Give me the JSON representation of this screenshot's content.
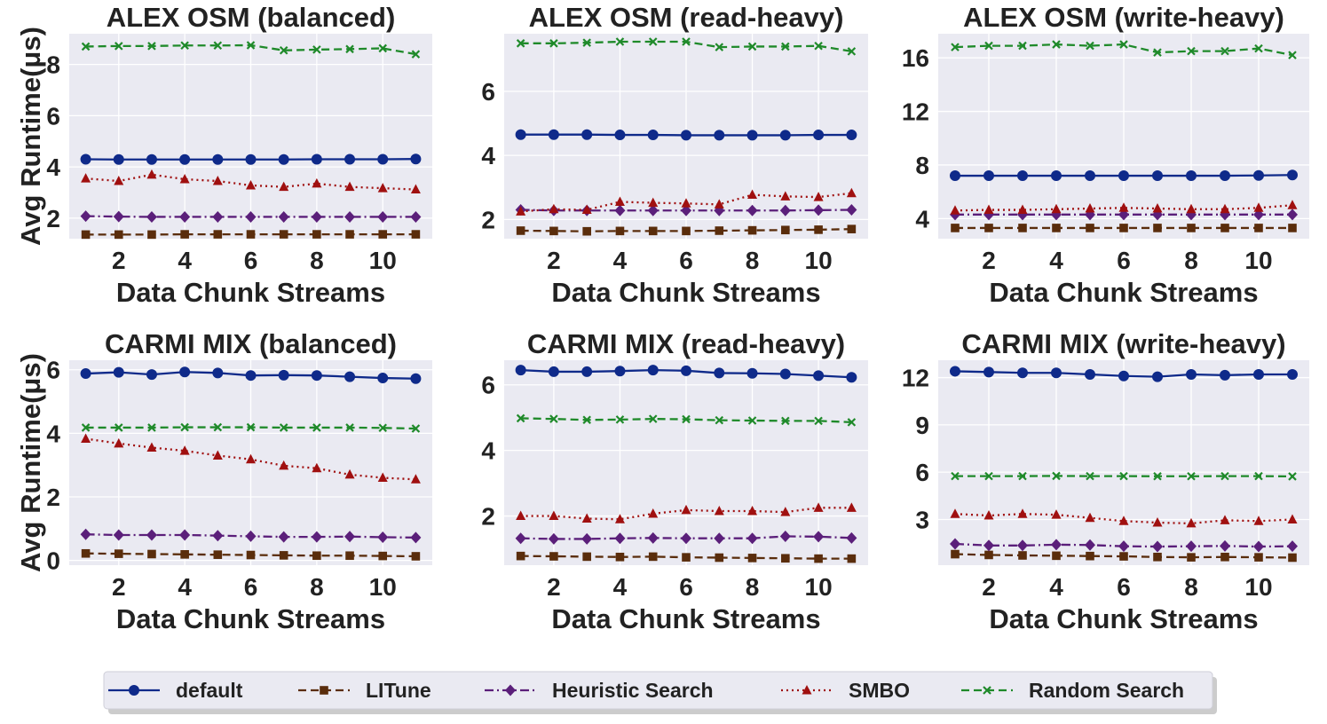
{
  "legend": [
    {
      "key": "default",
      "label": "default",
      "color": "#0f2a8a",
      "marker": "circle",
      "dash": "solid"
    },
    {
      "key": "litune",
      "label": "LITune",
      "color": "#5a2d0c",
      "marker": "square",
      "dash": "dash"
    },
    {
      "key": "heuristic",
      "label": "Heuristic Search",
      "color": "#5b1f7a",
      "marker": "diamond",
      "dash": "dashdot"
    },
    {
      "key": "smbo",
      "label": "SMBO",
      "color": "#a01010",
      "marker": "triangle",
      "dash": "dot"
    },
    {
      "key": "random",
      "label": "Random Search",
      "color": "#1f8a2a",
      "marker": "x",
      "dash": "dash"
    }
  ],
  "chart_data": [
    {
      "type": "line",
      "title": "ALEX OSM  (balanced)",
      "xlabel": "Data Chunk Streams",
      "ylabel": "Avg Runtime(μs)",
      "x": [
        1,
        2,
        3,
        4,
        5,
        6,
        7,
        8,
        9,
        10,
        11
      ],
      "xticks": [
        2,
        4,
        6,
        8,
        10
      ],
      "xlim": [
        0.5,
        11.5
      ],
      "ylim": [
        1.2,
        9.2
      ],
      "yticks": [
        2,
        4,
        6,
        8
      ],
      "series": [
        {
          "name": "default",
          "values": [
            4.3,
            4.29,
            4.29,
            4.29,
            4.29,
            4.29,
            4.29,
            4.3,
            4.3,
            4.3,
            4.31
          ]
        },
        {
          "name": "LITune",
          "values": [
            1.36,
            1.36,
            1.36,
            1.37,
            1.37,
            1.37,
            1.37,
            1.37,
            1.37,
            1.37,
            1.37
          ]
        },
        {
          "name": "Heuristic Search",
          "values": [
            2.08,
            2.06,
            2.05,
            2.05,
            2.05,
            2.05,
            2.05,
            2.05,
            2.05,
            2.05,
            2.05
          ]
        },
        {
          "name": "SMBO",
          "values": [
            3.55,
            3.45,
            3.7,
            3.52,
            3.45,
            3.28,
            3.22,
            3.35,
            3.22,
            3.17,
            3.12
          ]
        },
        {
          "name": "Random Search",
          "values": [
            8.7,
            8.72,
            8.72,
            8.74,
            8.74,
            8.75,
            8.55,
            8.58,
            8.6,
            8.63,
            8.4
          ]
        }
      ]
    },
    {
      "type": "line",
      "title": "ALEX OSM  (read-heavy)",
      "xlabel": "Data Chunk Streams",
      "ylabel": "",
      "x": [
        1,
        2,
        3,
        4,
        5,
        6,
        7,
        8,
        9,
        10,
        11
      ],
      "xticks": [
        2,
        4,
        6,
        8,
        10
      ],
      "xlim": [
        0.5,
        11.5
      ],
      "ylim": [
        1.4,
        7.8
      ],
      "yticks": [
        2,
        4,
        6
      ],
      "series": [
        {
          "name": "default",
          "values": [
            4.65,
            4.65,
            4.65,
            4.64,
            4.64,
            4.63,
            4.63,
            4.63,
            4.63,
            4.64,
            4.64
          ]
        },
        {
          "name": "LITune",
          "values": [
            1.65,
            1.64,
            1.63,
            1.64,
            1.64,
            1.64,
            1.65,
            1.66,
            1.67,
            1.68,
            1.7
          ]
        },
        {
          "name": "Heuristic Search",
          "values": [
            2.3,
            2.28,
            2.28,
            2.28,
            2.28,
            2.28,
            2.28,
            2.28,
            2.28,
            2.29,
            2.3
          ]
        },
        {
          "name": "SMBO",
          "values": [
            2.25,
            2.32,
            2.3,
            2.55,
            2.52,
            2.5,
            2.47,
            2.77,
            2.72,
            2.7,
            2.82
          ]
        },
        {
          "name": "Random Search",
          "values": [
            7.5,
            7.5,
            7.52,
            7.55,
            7.55,
            7.55,
            7.38,
            7.4,
            7.4,
            7.42,
            7.25
          ]
        }
      ]
    },
    {
      "type": "line",
      "title": "ALEX OSM  (write-heavy)",
      "xlabel": "Data Chunk Streams",
      "ylabel": "",
      "x": [
        1,
        2,
        3,
        4,
        5,
        6,
        7,
        8,
        9,
        10,
        11
      ],
      "xticks": [
        2,
        4,
        6,
        8,
        10
      ],
      "xlim": [
        0.5,
        11.5
      ],
      "ylim": [
        2.5,
        17.8
      ],
      "yticks": [
        4,
        8,
        12,
        16
      ],
      "series": [
        {
          "name": "default",
          "values": [
            7.2,
            7.2,
            7.2,
            7.2,
            7.2,
            7.2,
            7.2,
            7.2,
            7.2,
            7.22,
            7.25
          ]
        },
        {
          "name": "LITune",
          "values": [
            3.3,
            3.3,
            3.3,
            3.3,
            3.3,
            3.3,
            3.3,
            3.3,
            3.3,
            3.3,
            3.3
          ]
        },
        {
          "name": "Heuristic Search",
          "values": [
            4.3,
            4.3,
            4.3,
            4.3,
            4.3,
            4.3,
            4.3,
            4.3,
            4.3,
            4.3,
            4.3
          ]
        },
        {
          "name": "SMBO",
          "values": [
            4.6,
            4.65,
            4.65,
            4.7,
            4.75,
            4.8,
            4.75,
            4.7,
            4.7,
            4.8,
            5.0
          ]
        },
        {
          "name": "Random Search",
          "values": [
            16.8,
            16.9,
            16.9,
            17.0,
            16.9,
            17.0,
            16.4,
            16.5,
            16.5,
            16.7,
            16.2
          ]
        }
      ]
    },
    {
      "type": "line",
      "title": "CARMI MIX  (balanced)",
      "xlabel": "Data Chunk Streams",
      "ylabel": "Avg Runtime(μs)",
      "x": [
        1,
        2,
        3,
        4,
        5,
        6,
        7,
        8,
        9,
        10,
        11
      ],
      "xticks": [
        2,
        4,
        6,
        8,
        10
      ],
      "xlim": [
        0.5,
        11.5
      ],
      "ylim": [
        -0.15,
        6.3
      ],
      "yticks": [
        0,
        2,
        4,
        6
      ],
      "series": [
        {
          "name": "default",
          "values": [
            5.88,
            5.92,
            5.85,
            5.93,
            5.9,
            5.82,
            5.83,
            5.82,
            5.78,
            5.74,
            5.72
          ]
        },
        {
          "name": "LITune",
          "values": [
            0.22,
            0.21,
            0.2,
            0.19,
            0.18,
            0.17,
            0.16,
            0.15,
            0.15,
            0.14,
            0.13
          ]
        },
        {
          "name": "Heuristic Search",
          "values": [
            0.82,
            0.8,
            0.8,
            0.8,
            0.78,
            0.76,
            0.74,
            0.74,
            0.75,
            0.73,
            0.72
          ]
        },
        {
          "name": "SMBO",
          "values": [
            3.83,
            3.68,
            3.55,
            3.45,
            3.3,
            3.18,
            2.98,
            2.9,
            2.7,
            2.6,
            2.55
          ]
        },
        {
          "name": "Random Search",
          "values": [
            4.18,
            4.18,
            4.18,
            4.19,
            4.19,
            4.19,
            4.18,
            4.18,
            4.18,
            4.17,
            4.15
          ]
        }
      ]
    },
    {
      "type": "line",
      "title": "CARMI MIX  (read-heavy)",
      "xlabel": "Data Chunk Streams",
      "ylabel": "",
      "x": [
        1,
        2,
        3,
        4,
        5,
        6,
        7,
        8,
        9,
        10,
        11
      ],
      "xticks": [
        2,
        4,
        6,
        8,
        10
      ],
      "xlim": [
        0.5,
        11.5
      ],
      "ylim": [
        0.5,
        6.75
      ],
      "yticks": [
        2,
        4,
        6
      ],
      "series": [
        {
          "name": "default",
          "values": [
            6.45,
            6.4,
            6.4,
            6.42,
            6.45,
            6.43,
            6.36,
            6.35,
            6.33,
            6.28,
            6.23
          ]
        },
        {
          "name": "LITune",
          "values": [
            0.78,
            0.77,
            0.76,
            0.75,
            0.76,
            0.74,
            0.73,
            0.72,
            0.71,
            0.7,
            0.7
          ]
        },
        {
          "name": "Heuristic Search",
          "values": [
            1.32,
            1.3,
            1.3,
            1.32,
            1.33,
            1.32,
            1.32,
            1.32,
            1.38,
            1.37,
            1.33
          ]
        },
        {
          "name": "SMBO",
          "values": [
            2.0,
            2.0,
            1.92,
            1.9,
            2.07,
            2.18,
            2.15,
            2.15,
            2.12,
            2.25,
            2.25
          ]
        },
        {
          "name": "Random Search",
          "values": [
            4.98,
            4.96,
            4.93,
            4.94,
            4.96,
            4.95,
            4.92,
            4.91,
            4.9,
            4.9,
            4.86
          ]
        }
      ]
    },
    {
      "type": "line",
      "title": "CARMI MIX  (write-heavy)",
      "xlabel": "Data Chunk Streams",
      "ylabel": "",
      "x": [
        1,
        2,
        3,
        4,
        5,
        6,
        7,
        8,
        9,
        10,
        11
      ],
      "xticks": [
        2,
        4,
        6,
        8,
        10
      ],
      "xlim": [
        0.5,
        11.5
      ],
      "ylim": [
        0.1,
        13.1
      ],
      "yticks": [
        3,
        6,
        9,
        12
      ],
      "series": [
        {
          "name": "default",
          "values": [
            12.4,
            12.35,
            12.3,
            12.3,
            12.2,
            12.1,
            12.05,
            12.2,
            12.15,
            12.2,
            12.2
          ]
        },
        {
          "name": "LITune",
          "values": [
            0.8,
            0.75,
            0.72,
            0.7,
            0.68,
            0.66,
            0.62,
            0.6,
            0.62,
            0.6,
            0.58
          ]
        },
        {
          "name": "Heuristic Search",
          "values": [
            1.45,
            1.35,
            1.35,
            1.4,
            1.38,
            1.3,
            1.28,
            1.3,
            1.32,
            1.28,
            1.3
          ]
        },
        {
          "name": "SMBO",
          "values": [
            3.35,
            3.25,
            3.35,
            3.3,
            3.1,
            2.9,
            2.8,
            2.75,
            2.95,
            2.9,
            3.0
          ]
        },
        {
          "name": "Random Search",
          "values": [
            5.75,
            5.75,
            5.75,
            5.76,
            5.75,
            5.75,
            5.74,
            5.74,
            5.75,
            5.75,
            5.73
          ]
        }
      ]
    }
  ]
}
